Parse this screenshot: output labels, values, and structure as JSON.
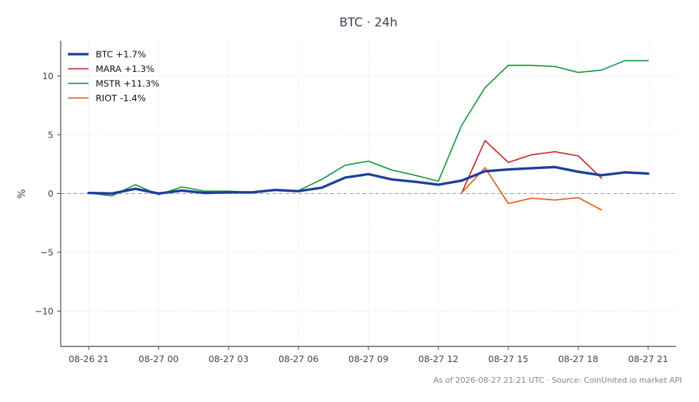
{
  "chart_data": {
    "type": "line",
    "title": "BTC · 24h",
    "ylabel": "%",
    "xlabel": "",
    "ylim": [
      -13,
      13
    ],
    "y_ticks": [
      -10,
      -5,
      0,
      5,
      10
    ],
    "y_tick_labels": [
      "−10",
      "−5",
      "0",
      "5",
      "10"
    ],
    "x_ticks": [
      0,
      3,
      6,
      9,
      12,
      15,
      18,
      21,
      24
    ],
    "x_tick_labels": [
      "08-26 21",
      "08-27 00",
      "08-27 03",
      "08-27 06",
      "08-27 09",
      "08-27 12",
      "08-27 15",
      "08-27 18",
      "08-27 21"
    ],
    "xlim": [
      -1.2,
      25.2
    ],
    "grid": true,
    "zero_line": true,
    "legend_position": "top-left",
    "series": [
      {
        "name": "BTC +1.7%",
        "color": "#1f3f9a",
        "x": [
          0,
          1,
          2,
          3,
          4,
          5,
          6,
          7,
          8,
          9,
          10,
          11,
          12,
          13,
          14,
          15,
          16,
          17,
          18,
          19,
          20,
          21,
          22,
          23,
          24
        ],
        "y": [
          0.05,
          0.0,
          0.4,
          0.0,
          0.25,
          0.05,
          0.1,
          0.1,
          0.3,
          0.2,
          0.5,
          1.35,
          1.65,
          1.2,
          1.0,
          0.75,
          1.1,
          1.9,
          2.05,
          2.15,
          2.25,
          1.85,
          1.55,
          1.8,
          1.7
        ],
        "width": 3.5
      },
      {
        "name": "MARA +1.3%",
        "color": "#c8312f",
        "x": [
          16,
          17,
          18,
          19,
          20,
          21,
          22
        ],
        "y": [
          0.05,
          4.5,
          2.65,
          3.3,
          3.55,
          3.2,
          1.3
        ],
        "width": 1.8
      },
      {
        "name": "MSTR +11.3%",
        "color": "#1f9a4a",
        "x": [
          0,
          1,
          2,
          3,
          4,
          5,
          6,
          7,
          8,
          9,
          10,
          11,
          12,
          13,
          14,
          15,
          16,
          17,
          18,
          19,
          20,
          21,
          22,
          23,
          24
        ],
        "y": [
          0.05,
          -0.2,
          0.75,
          -0.1,
          0.55,
          0.2,
          0.2,
          0.1,
          0.3,
          0.25,
          1.2,
          2.4,
          2.75,
          2.0,
          1.55,
          1.05,
          5.8,
          9.0,
          10.9,
          10.9,
          10.8,
          10.3,
          10.5,
          11.3,
          11.3
        ],
        "width": 1.8
      },
      {
        "name": "RIOT -1.4%",
        "color": "#e0611f",
        "x": [
          16,
          17,
          18,
          19,
          20,
          21,
          22
        ],
        "y": [
          0.05,
          2.2,
          -0.85,
          -0.4,
          -0.55,
          -0.35,
          -1.4
        ],
        "width": 1.8
      }
    ],
    "footer": "As of 2026-08-27 21:21 UTC · Source: CoinUnited.io market API"
  }
}
